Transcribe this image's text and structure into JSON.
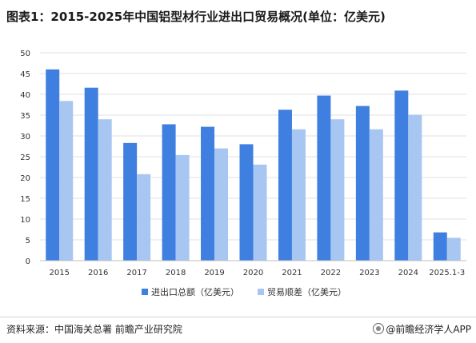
{
  "title": "图表1：2015-2025年中国铝型材行业进出口贸易概况(单位：亿美元)",
  "source": "资料来源：中国海关总署 前瞻产业研究院",
  "brand": "@前瞻经济学人APP",
  "colors": {
    "total": "#3f7fe0",
    "balance": "#a8c6f2",
    "grid": "#e2e2e2",
    "axis": "#bfbfbf"
  },
  "chart_data": {
    "type": "bar",
    "categories": [
      "2015",
      "2016",
      "2017",
      "2018",
      "2019",
      "2020",
      "2021",
      "2022",
      "2023",
      "2024",
      "2025.1-3"
    ],
    "series": [
      {
        "name": "进出口总额（亿美元）",
        "values": [
          46.0,
          41.6,
          28.3,
          32.8,
          32.2,
          28.0,
          36.3,
          39.7,
          37.2,
          40.9,
          6.8
        ]
      },
      {
        "name": "贸易顺差（亿美元）",
        "values": [
          38.4,
          34.0,
          20.8,
          25.4,
          27.0,
          23.1,
          31.6,
          34.0,
          31.6,
          35.1,
          5.5
        ]
      }
    ],
    "ylim": [
      0,
      50
    ],
    "yticks": [
      0,
      5,
      10,
      15,
      20,
      25,
      30,
      35,
      40,
      45,
      50
    ],
    "grid": true,
    "legend": "bottom"
  }
}
